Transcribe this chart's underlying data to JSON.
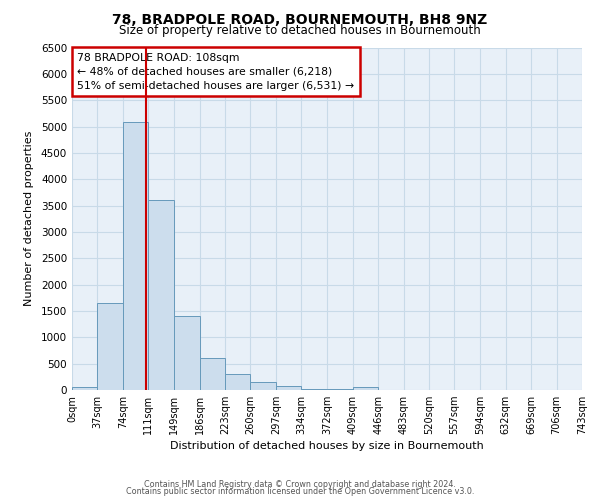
{
  "title": "78, BRADPOLE ROAD, BOURNEMOUTH, BH8 9NZ",
  "subtitle": "Size of property relative to detached houses in Bournemouth",
  "xlabel": "Distribution of detached houses by size in Bournemouth",
  "ylabel": "Number of detached properties",
  "bar_color": "#ccdded",
  "bar_edge_color": "#6699bb",
  "bin_edges": [
    0,
    37,
    74,
    111,
    149,
    186,
    223,
    260,
    297,
    334,
    372,
    409,
    446,
    483,
    520,
    557,
    594,
    632,
    669,
    706,
    743
  ],
  "bin_labels": [
    "0sqm",
    "37sqm",
    "74sqm",
    "111sqm",
    "149sqm",
    "186sqm",
    "223sqm",
    "260sqm",
    "297sqm",
    "334sqm",
    "372sqm",
    "409sqm",
    "446sqm",
    "483sqm",
    "520sqm",
    "557sqm",
    "594sqm",
    "632sqm",
    "669sqm",
    "706sqm",
    "743sqm"
  ],
  "counts": [
    50,
    1650,
    5080,
    3600,
    1400,
    610,
    300,
    150,
    80,
    20,
    10,
    50,
    0,
    0,
    0,
    0,
    0,
    0,
    0,
    0
  ],
  "property_line_x": 108,
  "property_line_color": "#cc0000",
  "annotation_line1": "78 BRADPOLE ROAD: 108sqm",
  "annotation_line2": "← 48% of detached houses are smaller (6,218)",
  "annotation_line3": "51% of semi-detached houses are larger (6,531) →",
  "ylim": [
    0,
    6500
  ],
  "yticks": [
    0,
    500,
    1000,
    1500,
    2000,
    2500,
    3000,
    3500,
    4000,
    4500,
    5000,
    5500,
    6000,
    6500
  ],
  "grid_color": "#c8dae8",
  "axes_bg_color": "#e8f0f8",
  "fig_bg_color": "#ffffff",
  "footer_line1": "Contains HM Land Registry data © Crown copyright and database right 2024.",
  "footer_line2": "Contains public sector information licensed under the Open Government Licence v3.0."
}
